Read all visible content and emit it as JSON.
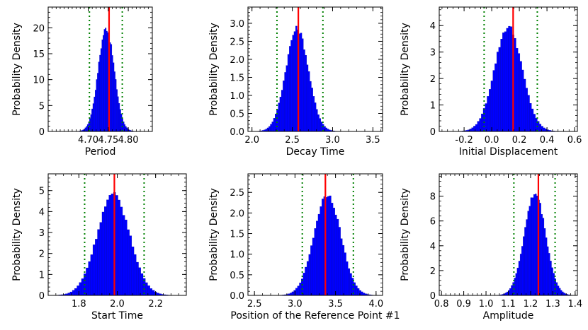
{
  "chart_data": [
    {
      "type": "bar",
      "title": "",
      "xlabel": "Period",
      "ylabel": "Probability Density",
      "xlim": [
        4.6,
        4.86
      ],
      "ylim": [
        0,
        24
      ],
      "xticks": [
        4.7,
        4.75,
        4.8
      ],
      "xtick_labels": [
        "4.70",
        "4.75",
        "4.80"
      ],
      "yticks": [
        0,
        5,
        10,
        15,
        20
      ],
      "ytick_labels": [
        "0",
        "5",
        "10",
        "15",
        "20"
      ],
      "distribution": {
        "mean": 4.745,
        "sd": 0.02,
        "peak": 19.9
      },
      "median_line": 4.752,
      "interval_lines": [
        4.703,
        4.785
      ],
      "colors": {
        "bars": "#0000ff",
        "median": "#ff0000",
        "interval": "#008000"
      }
    },
    {
      "type": "bar",
      "title": "",
      "xlabel": "Decay Time",
      "ylabel": "Probability Density",
      "xlim": [
        1.95,
        3.62
      ],
      "ylim": [
        0,
        3.45
      ],
      "xticks": [
        2.0,
        2.5,
        3.0,
        3.5
      ],
      "xtick_labels": [
        "2.0",
        "2.5",
        "3.0",
        "3.5"
      ],
      "yticks": [
        0,
        0.5,
        1.0,
        1.5,
        2.0,
        2.5,
        3.0
      ],
      "ytick_labels": [
        "0.0",
        "0.5",
        "1.0",
        "1.5",
        "2.0",
        "2.5",
        "3.0"
      ],
      "distribution": {
        "mean": 2.56,
        "sd": 0.14,
        "peak": 2.85
      },
      "median_line": 2.575,
      "interval_lines": [
        2.31,
        2.88
      ],
      "colors": {
        "bars": "#0000ff",
        "median": "#ff0000",
        "interval": "#008000"
      }
    },
    {
      "type": "bar",
      "title": "",
      "xlabel": "Initial Displacement",
      "ylabel": "Probability Density",
      "xlim": [
        -0.38,
        0.62
      ],
      "ylim": [
        0,
        4.7
      ],
      "xticks": [
        -0.2,
        0.0,
        0.2,
        0.4,
        0.6
      ],
      "xtick_labels": [
        "-0.2",
        "0.0",
        "0.2",
        "0.4",
        "0.6"
      ],
      "yticks": [
        0,
        1,
        2,
        3,
        4
      ],
      "ytick_labels": [
        "0",
        "1",
        "2",
        "3",
        "4"
      ],
      "distribution": {
        "mean": 0.12,
        "sd": 0.1,
        "peak": 3.95
      },
      "median_line": 0.155,
      "interval_lines": [
        -0.055,
        0.33
      ],
      "colors": {
        "bars": "#0000ff",
        "median": "#ff0000",
        "interval": "#008000"
      }
    },
    {
      "type": "bar",
      "title": "",
      "xlabel": "Start Time",
      "ylabel": "Probability Density",
      "xlim": [
        1.64,
        2.36
      ],
      "ylim": [
        0,
        5.8
      ],
      "xticks": [
        1.8,
        2.0,
        2.2
      ],
      "xtick_labels": [
        "1.8",
        "2.0",
        "2.2"
      ],
      "yticks": [
        0,
        1,
        2,
        3,
        4,
        5
      ],
      "ytick_labels": [
        "0",
        "1",
        "2",
        "3",
        "4",
        "5"
      ],
      "distribution": {
        "mean": 1.98,
        "sd": 0.085,
        "peak": 4.8
      },
      "median_line": 1.985,
      "interval_lines": [
        1.83,
        2.14
      ],
      "colors": {
        "bars": "#0000ff",
        "median": "#ff0000",
        "interval": "#008000"
      }
    },
    {
      "type": "bar",
      "title": "",
      "xlabel": "Position of the Reference Point #1",
      "ylabel": "Probability Density",
      "xlim": [
        2.42,
        4.08
      ],
      "ylim": [
        0,
        2.95
      ],
      "xticks": [
        2.5,
        3.0,
        3.5,
        4.0
      ],
      "xtick_labels": [
        "2.5",
        "3.0",
        "3.5",
        "4.0"
      ],
      "yticks": [
        0,
        0.5,
        1.0,
        1.5,
        2.0,
        2.5
      ],
      "ytick_labels": [
        "0.0",
        "0.5",
        "1.0",
        "1.5",
        "2.0",
        "2.5"
      ],
      "distribution": {
        "mean": 3.4,
        "sd": 0.165,
        "peak": 2.45
      },
      "median_line": 3.375,
      "interval_lines": [
        3.09,
        3.72
      ],
      "colors": {
        "bars": "#0000ff",
        "median": "#ff0000",
        "interval": "#008000"
      }
    },
    {
      "type": "bar",
      "title": "",
      "xlabel": "Amplitude",
      "ylabel": "Probability Density",
      "xlim": [
        0.79,
        1.41
      ],
      "ylim": [
        0,
        9.8
      ],
      "xticks": [
        0.8,
        0.9,
        1.0,
        1.1,
        1.2,
        1.3,
        1.4
      ],
      "xtick_labels": [
        "0.8",
        "0.9",
        "1.0",
        "1.1",
        "1.2",
        "1.3",
        "1.4"
      ],
      "yticks": [
        0,
        2,
        4,
        6,
        8
      ],
      "ytick_labels": [
        "0",
        "2",
        "4",
        "6",
        "8"
      ],
      "distribution": {
        "mean": 1.22,
        "sd": 0.048,
        "peak": 8.2
      },
      "median_line": 1.235,
      "interval_lines": [
        1.125,
        1.31
      ],
      "colors": {
        "bars": "#0000ff",
        "median": "#ff0000",
        "interval": "#008000"
      }
    }
  ]
}
